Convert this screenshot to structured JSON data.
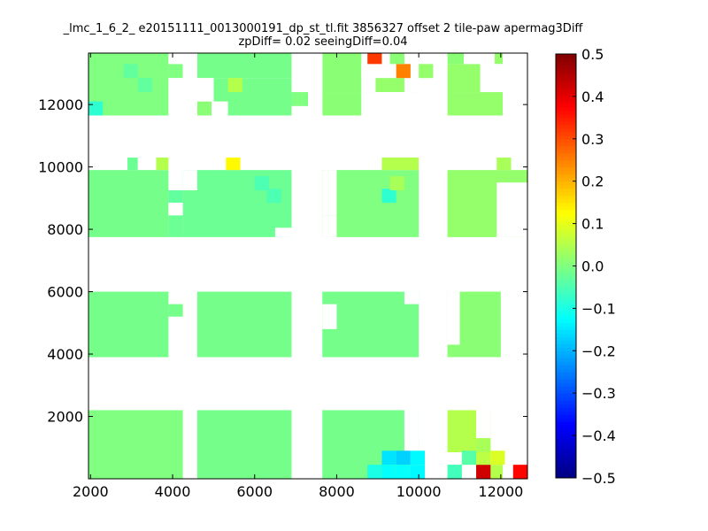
{
  "chart_data": {
    "type": "heatmap",
    "title_line1": "_lmc_1_6_2_ e20151111_0013000191_dp_st_tl.fit 3856327 offset 2 tile-paw apermag3Diff",
    "title_line2": "zpDiff= 0.02 seeingDiff=0.04",
    "xlim": [
      1950,
      12650
    ],
    "ylim": [
      0,
      13650
    ],
    "x_ticks": [
      2000,
      4000,
      6000,
      8000,
      10000,
      12000
    ],
    "x_tick_labels": [
      "2000",
      "4000",
      "6000",
      "8000",
      "10000",
      "12000"
    ],
    "y_ticks": [
      2000,
      4000,
      6000,
      8000,
      10000,
      12000
    ],
    "y_tick_labels": [
      "2000",
      "4000",
      "6000",
      "8000",
      "10000",
      "12000"
    ],
    "colorbar": {
      "colormap": "jet",
      "range": [
        -0.5,
        0.5
      ],
      "ticks": [
        0.5,
        0.4,
        0.3,
        0.2,
        0.1,
        0.0,
        -0.1,
        -0.2,
        -0.3,
        -0.4,
        -0.5
      ],
      "tick_labels": [
        "0.5",
        "0.4",
        "0.3",
        "0.2",
        "0.1",
        "0.0",
        "−0.1",
        "−0.2",
        "−0.3",
        "−0.4",
        "−0.5"
      ]
    },
    "cell_size": [
      350,
      450
    ],
    "base_value": 0.0,
    "blocks": [
      {
        "x_range": [
          1950,
          3900
        ],
        "y_range": [
          11650,
          13650
        ],
        "value": 0.0
      },
      {
        "x_range": [
          3900,
          4250
        ],
        "y_range": [
          12850,
          13300
        ],
        "value": 0.0
      },
      {
        "x_range": [
          4600,
          6900
        ],
        "y_range": [
          12850,
          13650
        ],
        "value": -0.01
      },
      {
        "x_range": [
          5000,
          6900
        ],
        "y_range": [
          11650,
          12850
        ],
        "value": -0.01
      },
      {
        "x_range": [
          6900,
          7300
        ],
        "y_range": [
          11950,
          12400
        ],
        "value": 0.0
      },
      {
        "x_range": [
          4600,
          4950
        ],
        "y_range": [
          11650,
          12100
        ],
        "value": 0.01
      },
      {
        "x_range": [
          7650,
          8600
        ],
        "y_range": [
          12400,
          13650
        ],
        "value": 0.01
      },
      {
        "x_range": [
          7650,
          8950
        ],
        "y_range": [
          11650,
          12400
        ],
        "value": 0.01
      },
      {
        "x_range": [
          8950,
          9650
        ],
        "y_range": [
          12400,
          12850
        ],
        "value": 0.02
      },
      {
        "x_range": [
          9650,
          10000
        ],
        "y_range": [
          11950,
          12400
        ],
        "value": -0.02
      },
      {
        "x_range": [
          10700,
          11100
        ],
        "y_range": [
          13300,
          13650
        ],
        "value": 0.01
      },
      {
        "x_range": [
          10700,
          11500
        ],
        "y_range": [
          12400,
          13300
        ],
        "value": 0.02
      },
      {
        "x_range": [
          10700,
          12050
        ],
        "y_range": [
          11650,
          12400
        ],
        "value": 0.02
      },
      {
        "x_range": [
          11850,
          12050
        ],
        "y_range": [
          13300,
          13650
        ],
        "value": 0.02
      },
      {
        "x_range": [
          1950,
          3900
        ],
        "y_range": [
          7750,
          9900
        ],
        "value": -0.01
      },
      {
        "x_range": [
          2900,
          3150
        ],
        "y_range": [
          9900,
          10300
        ],
        "value": -0.02
      },
      {
        "x_range": [
          3600,
          3900
        ],
        "y_range": [
          9900,
          10300
        ],
        "value": 0.05
      },
      {
        "x_range": [
          3900,
          4250
        ],
        "y_range": [
          8850,
          9250
        ],
        "value": -0.03
      },
      {
        "x_range": [
          3900,
          4250
        ],
        "y_range": [
          7750,
          8450
        ],
        "value": -0.02
      },
      {
        "x_range": [
          4250,
          6900
        ],
        "y_range": [
          7750,
          9900
        ],
        "value": -0.02
      },
      {
        "x_range": [
          5300,
          5650
        ],
        "y_range": [
          9900,
          10300
        ],
        "value": 0.13
      },
      {
        "x_range": [
          7650,
          10000
        ],
        "y_range": [
          7750,
          9900
        ],
        "value": 0.0
      },
      {
        "x_range": [
          9100,
          10000
        ],
        "y_range": [
          9900,
          10300
        ],
        "value": 0.05
      },
      {
        "x_range": [
          10700,
          12650
        ],
        "y_range": [
          7750,
          9900
        ],
        "value": 0.02
      },
      {
        "x_range": [
          11900,
          12250
        ],
        "y_range": [
          9900,
          10300
        ],
        "value": 0.04
      },
      {
        "x_range": [
          1950,
          3900
        ],
        "y_range": [
          3900,
          6000
        ],
        "value": -0.01
      },
      {
        "x_range": [
          3900,
          4250
        ],
        "y_range": [
          5200,
          5600
        ],
        "value": -0.01
      },
      {
        "x_range": [
          4600,
          6900
        ],
        "y_range": [
          3900,
          6000
        ],
        "value": -0.01
      },
      {
        "x_range": [
          7650,
          10000
        ],
        "y_range": [
          3900,
          6000
        ],
        "value": -0.01
      },
      {
        "x_range": [
          10700,
          12000
        ],
        "y_range": [
          3900,
          6000
        ],
        "value": 0.01
      },
      {
        "x_range": [
          1950,
          4250
        ],
        "y_range": [
          0,
          2200
        ],
        "value": 0.0
      },
      {
        "x_range": [
          4600,
          6900
        ],
        "y_range": [
          0,
          2200
        ],
        "value": -0.01
      },
      {
        "x_range": [
          7650,
          10000
        ],
        "y_range": [
          0,
          2200
        ],
        "value": -0.01
      },
      {
        "x_range": [
          10700,
          12050
        ],
        "y_range": [
          0,
          2200
        ],
        "value": 0.05
      }
    ],
    "cells": [
      {
        "x": 8750,
        "y": 13300,
        "value": 0.32
      },
      {
        "x": 9450,
        "y": 12850,
        "value": 0.25
      },
      {
        "x": 10000,
        "y": 12850,
        "value": 0.02
      },
      {
        "x": 9300,
        "y": 13300,
        "value": 0.01
      },
      {
        "x": 1950,
        "y": 11650,
        "value": -0.08
      },
      {
        "x": 3150,
        "y": 12400,
        "value": -0.03
      },
      {
        "x": 2800,
        "y": 12850,
        "value": -0.03
      },
      {
        "x": 5350,
        "y": 12400,
        "value": 0.05
      },
      {
        "x": 9100,
        "y": 8850,
        "value": -0.08
      },
      {
        "x": 9300,
        "y": 9250,
        "value": 0.04
      },
      {
        "x": 6000,
        "y": 9250,
        "value": -0.05
      },
      {
        "x": 6300,
        "y": 8850,
        "value": -0.05
      },
      {
        "x": 9100,
        "y": 450,
        "value": -0.15
      },
      {
        "x": 9450,
        "y": 450,
        "value": -0.17
      },
      {
        "x": 9800,
        "y": 450,
        "value": -0.13
      },
      {
        "x": 8750,
        "y": 0,
        "value": -0.1
      },
      {
        "x": 9100,
        "y": 0,
        "value": -0.12
      },
      {
        "x": 9450,
        "y": 0,
        "value": -0.12
      },
      {
        "x": 9800,
        "y": 0,
        "value": -0.13
      },
      {
        "x": 10700,
        "y": 0,
        "value": -0.06
      },
      {
        "x": 11050,
        "y": 450,
        "value": -0.04
      },
      {
        "x": 11400,
        "y": 0,
        "value": 0.42
      },
      {
        "x": 12300,
        "y": 0,
        "value": 0.37
      },
      {
        "x": 11400,
        "y": 450,
        "value": 0.06
      },
      {
        "x": 11750,
        "y": 450,
        "value": 0.09
      },
      {
        "x": 11400,
        "y": 850,
        "value": 0.04
      }
    ],
    "gaps": [
      {
        "x_range": [
          10000,
          12650
        ],
        "y_range": [
          2200,
          3900
        ]
      },
      {
        "x_range": [
          12050,
          12650
        ],
        "y_range": [
          0,
          2200
        ]
      },
      {
        "x_range": [
          11050,
          11400
        ],
        "y_range": [
          0,
          450
        ]
      },
      {
        "x_range": [
          9650,
          10000
        ],
        "y_range": [
          850,
          2200
        ]
      },
      {
        "x_range": [
          9650,
          10000
        ],
        "y_range": [
          1300,
          2200
        ]
      },
      {
        "x_range": [
          8600,
          8950
        ],
        "y_range": [
          12850,
          13300
        ]
      },
      {
        "x_range": [
          7650,
          8000
        ],
        "y_range": [
          4800,
          5600
        ]
      },
      {
        "x_range": [
          9650,
          10000
        ],
        "y_range": [
          5600,
          6000
        ]
      },
      {
        "x_range": [
          10700,
          11000
        ],
        "y_range": [
          4300,
          6000
        ]
      },
      {
        "x_range": [
          11900,
          12650
        ],
        "y_range": [
          7750,
          9500
        ]
      },
      {
        "x_range": [
          3900,
          4250
        ],
        "y_range": [
          8450,
          8850
        ]
      },
      {
        "x_range": [
          4250,
          4600
        ],
        "y_range": [
          9250,
          9900
        ]
      },
      {
        "x_range": [
          6900,
          7300
        ],
        "y_range": [
          8450,
          9900
        ]
      },
      {
        "x_range": [
          7650,
          8000
        ],
        "y_range": [
          8450,
          9900
        ]
      },
      {
        "x_range": [
          7650,
          8000
        ],
        "y_range": [
          7750,
          8450
        ]
      },
      {
        "x_range": [
          6500,
          6900
        ],
        "y_range": [
          7750,
          8050
        ]
      },
      {
        "x_range": [
          10000,
          10700
        ],
        "y_range": [
          9900,
          10300
        ]
      },
      {
        "x_range": [
          8600,
          10700
        ],
        "y_range": [
          11650,
          12400
        ]
      },
      {
        "x_range": [
          10000,
          10700
        ],
        "y_range": [
          12400,
          13650
        ]
      },
      {
        "x_range": [
          4950,
          5350
        ],
        "y_range": [
          11650,
          12100
        ]
      },
      {
        "x_range": [
          4250,
          4600
        ],
        "y_range": [
          11650,
          13650
        ]
      },
      {
        "x_range": [
          9800,
          10000
        ],
        "y_range": [
          12850,
          13300
        ]
      },
      {
        "x_range": [
          9650,
          10000
        ],
        "y_range": [
          13300,
          13650
        ]
      },
      {
        "x_range": [
          11500,
          12650
        ],
        "y_range": [
          12400,
          13300
        ]
      },
      {
        "x_range": [
          12050,
          12650
        ],
        "y_range": [
          11650,
          13650
        ]
      },
      {
        "x_range": [
          11100,
          11850
        ],
        "y_range": [
          13300,
          13650
        ]
      },
      {
        "x_range": [
          4600,
          5000
        ],
        "y_range": [
          12100,
          12850
        ]
      },
      {
        "x_range": [
          3900,
          4600
        ],
        "y_range": [
          11650,
          12850
        ]
      },
      {
        "x_range": [
          3900,
          4600
        ],
        "y_range": [
          13300,
          13650
        ]
      },
      {
        "x_range": [
          7300,
          7650
        ],
        "y_range": [
          11650,
          13650
        ]
      },
      {
        "x_range": [
          6900,
          7650
        ],
        "y_range": [
          12400,
          13650
        ]
      },
      {
        "x_range": [
          6900,
          7300
        ],
        "y_range": [
          11650,
          11950
        ]
      },
      {
        "x_range": [
          9650,
          12650
        ],
        "y_range": [
          450,
          850
        ]
      },
      {
        "x_range": [
          10700,
          11050
        ],
        "y_range": [
          450,
          850
        ]
      },
      {
        "x_range": [
          11750,
          12650
        ],
        "y_range": [
          850,
          2200
        ]
      },
      {
        "x_range": [
          11400,
          11750
        ],
        "y_range": [
          1300,
          2200
        ]
      }
    ]
  }
}
